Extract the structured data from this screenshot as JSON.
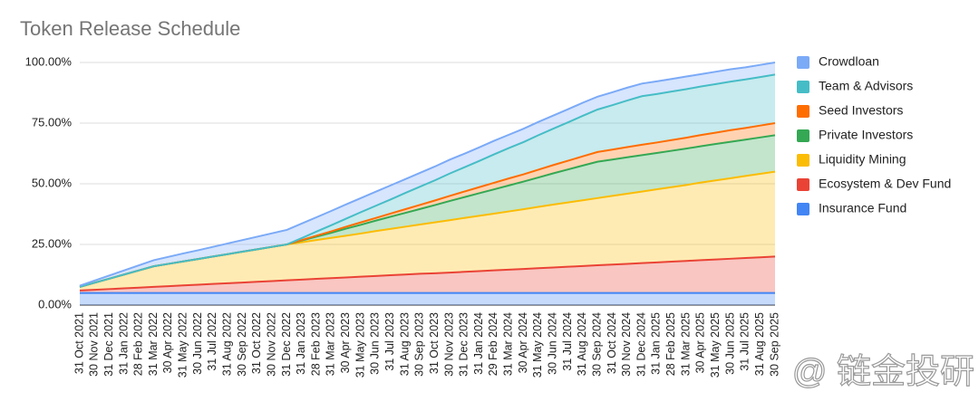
{
  "chart_data": {
    "type": "stacked-area",
    "title": "Token Release Schedule",
    "watermark": "@ 链金投研",
    "categories": [
      "31 Oct 2021",
      "30 Nov 2021",
      "31 Dec 2021",
      "31 Jan 2022",
      "28 Feb 2022",
      "31 Mar 2022",
      "30 Apr 2022",
      "31 May 2022",
      "30 Jun 2022",
      "31 Jul 2022",
      "31 Aug 2022",
      "30 Sep 2022",
      "31 Oct 2022",
      "30 Nov 2022",
      "31 Dec 2022",
      "31 Jan 2023",
      "28 Feb 2023",
      "31 Mar 2023",
      "30 Apr 2023",
      "31 May 2023",
      "30 Jun 2023",
      "31 Jul 2023",
      "31 Aug 2023",
      "30 Sep 2023",
      "31 Oct 2023",
      "30 Nov 2023",
      "31 Dec 2023",
      "31 Jan 2024",
      "29 Feb 2024",
      "31 Mar 2024",
      "30 Apr 2024",
      "31 May 2024",
      "30 Jun 2024",
      "31 Jul 2024",
      "31 Aug 2024",
      "30 Sep 2024",
      "31 Oct 2024",
      "30 Nov 2024",
      "31 Dec 2024",
      "31 Jan 2025",
      "28 Feb 2025",
      "31 Mar 2025",
      "30 Apr 2025",
      "31 May 2025",
      "30 Jun 2025",
      "31 Jul 2025",
      "31 Aug 2025",
      "30 Sep 2025"
    ],
    "series": [
      {
        "name": "Crowdloan",
        "color": "#7baaf7",
        "values": [
          0.5,
          0.9,
          1.3,
          1.7,
          2.1,
          2.5,
          2.9,
          3.3,
          3.6,
          4.0,
          4.4,
          4.8,
          5.2,
          5.6,
          6.0,
          6.0,
          5.9,
          5.9,
          5.9,
          5.8,
          5.8,
          5.8,
          5.7,
          5.7,
          5.7,
          5.7,
          5.6,
          5.6,
          5.6,
          5.5,
          5.5,
          5.5,
          5.4,
          5.4,
          5.4,
          5.3,
          5.3,
          5.3,
          5.2,
          5.2,
          5.2,
          5.2,
          5.1,
          5.1,
          5.1,
          5.0,
          5.0,
          5.0
        ]
      },
      {
        "name": "Team & Advisors",
        "color": "#46bdc6",
        "values": [
          0,
          0,
          0,
          0,
          0,
          0,
          0,
          0,
          0,
          0,
          0,
          0,
          0,
          0,
          0,
          0.8,
          1.7,
          2.5,
          3.3,
          4.2,
          5.0,
          5.8,
          6.7,
          7.5,
          8.3,
          9.2,
          10.0,
          10.8,
          11.7,
          12.5,
          13.3,
          14.2,
          15.0,
          15.8,
          16.7,
          17.5,
          18.3,
          19.2,
          20,
          20,
          20,
          20,
          20,
          20,
          20,
          20,
          20,
          20
        ]
      },
      {
        "name": "Seed Investors",
        "color": "#ff6d01",
        "values": [
          0,
          0,
          0,
          0,
          0,
          0,
          0,
          0,
          0,
          0,
          0,
          0,
          0,
          0,
          0,
          0.2,
          0.4,
          0.6,
          0.8,
          1.0,
          1.1,
          1.3,
          1.5,
          1.7,
          1.9,
          2.1,
          2.3,
          2.5,
          2.7,
          2.9,
          3.0,
          3.2,
          3.4,
          3.6,
          3.8,
          4.0,
          4.1,
          4.2,
          4.3,
          4.3,
          4.4,
          4.5,
          4.6,
          4.7,
          4.8,
          4.8,
          4.9,
          5.0
        ]
      },
      {
        "name": "Private Investors",
        "color": "#34a853",
        "values": [
          0,
          0,
          0,
          0,
          0,
          0,
          0,
          0,
          0,
          0,
          0,
          0,
          0,
          0,
          0,
          0.7,
          1.4,
          2.1,
          2.9,
          3.6,
          4.3,
          5.0,
          5.7,
          6.4,
          7.1,
          7.9,
          8.6,
          9.3,
          10.0,
          10.7,
          11.4,
          12.1,
          12.9,
          13.6,
          14.3,
          15,
          15,
          15,
          15,
          15,
          15,
          15,
          15,
          15,
          15,
          15,
          15,
          15
        ]
      },
      {
        "name": "Liquidity Mining",
        "color": "#fbbc04",
        "values": [
          1.5,
          2.9,
          4.3,
          5.7,
          7.1,
          8.5,
          9.2,
          9.9,
          10.6,
          11.3,
          12.0,
          12.7,
          13.4,
          14.1,
          14.8,
          15.4,
          16.0,
          16.6,
          17.2,
          17.8,
          18.5,
          19.1,
          19.7,
          20.3,
          21.0,
          21.6,
          22.2,
          22.8,
          23.4,
          24.0,
          24.6,
          25.3,
          25.9,
          26.5,
          27.1,
          27.7,
          28.3,
          28.9,
          29.5,
          30.1,
          30.7,
          31.3,
          32.0,
          32.6,
          33.2,
          33.8,
          34.4,
          35.0
        ]
      },
      {
        "name": "Ecosystem & Dev Fund",
        "color": "#ea4335",
        "values": [
          1.0,
          1.3,
          1.6,
          1.9,
          2.2,
          2.5,
          2.8,
          3.1,
          3.4,
          3.7,
          4.0,
          4.3,
          4.6,
          4.9,
          5.2,
          5.5,
          5.8,
          6.1,
          6.4,
          6.7,
          7.0,
          7.3,
          7.6,
          7.9,
          8.1,
          8.4,
          8.7,
          9.0,
          9.3,
          9.6,
          9.9,
          10.2,
          10.5,
          10.8,
          11.1,
          11.4,
          11.7,
          12.0,
          12.3,
          12.6,
          12.9,
          13.2,
          13.5,
          13.8,
          14.1,
          14.4,
          14.7,
          15.0
        ]
      },
      {
        "name": "Insurance Fund",
        "color": "#4285f4",
        "values": [
          5,
          5,
          5,
          5,
          5,
          5,
          5,
          5,
          5,
          5,
          5,
          5,
          5,
          5,
          5,
          5,
          5,
          5,
          5,
          5,
          5,
          5,
          5,
          5,
          5,
          5,
          5,
          5,
          5,
          5,
          5,
          5,
          5,
          5,
          5,
          5,
          5,
          5,
          5,
          5,
          5,
          5,
          5,
          5,
          5,
          5,
          5,
          5
        ]
      }
    ],
    "ylim": [
      0,
      100
    ],
    "yticks": [
      {
        "value": 0,
        "label": "0.00%"
      },
      {
        "value": 25,
        "label": "25.00%"
      },
      {
        "value": 50,
        "label": "50.00%"
      },
      {
        "value": 75,
        "label": "75.00%"
      },
      {
        "value": 100,
        "label": "100.00%"
      }
    ],
    "grid": true,
    "legend": "right"
  }
}
